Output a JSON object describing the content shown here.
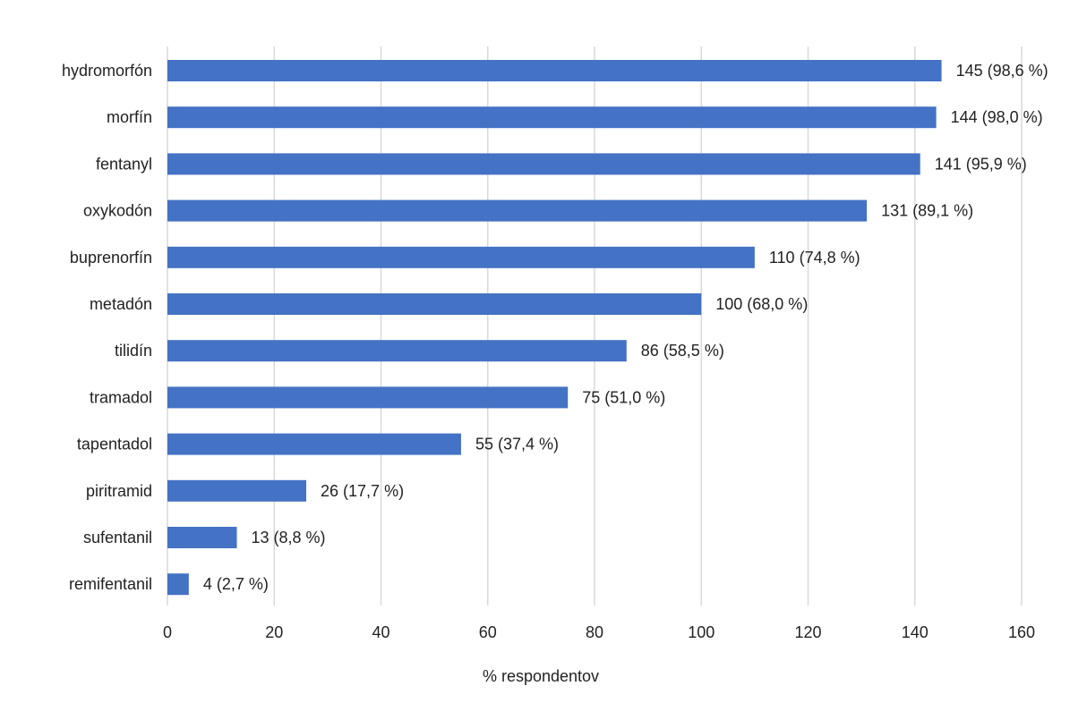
{
  "chart_data": {
    "type": "bar",
    "orientation": "horizontal",
    "xlabel": "% respondentov",
    "ylabel": "",
    "xlim": [
      0,
      160
    ],
    "x_ticks": [
      0,
      20,
      40,
      60,
      80,
      100,
      120,
      140,
      160
    ],
    "grid": "vertical",
    "bar_color": "#4472c4",
    "categories": [
      "hydromorfón",
      "morfín",
      "fentanyl",
      "oxykodón",
      "buprenorfín",
      "metadón",
      "tilidín",
      "tramadol",
      "tapentadol",
      "piritramid",
      "sufentanil",
      "remifentanil"
    ],
    "values": [
      145,
      144,
      141,
      131,
      110,
      100,
      86,
      75,
      55,
      26,
      13,
      4
    ],
    "data_labels": [
      "145 (98,6 %)",
      "144 (98,0 %)",
      "141 (95,9 %)",
      "131 (89,1 %)",
      "110 (74,8 %)",
      "100 (68,0 %)",
      "86 (58,5 %)",
      "75 (51,0 %)",
      "55 (37,4 %)",
      "26 (17,7 %)",
      "13 (8,8 %)",
      "4 (2,7 %)"
    ]
  }
}
